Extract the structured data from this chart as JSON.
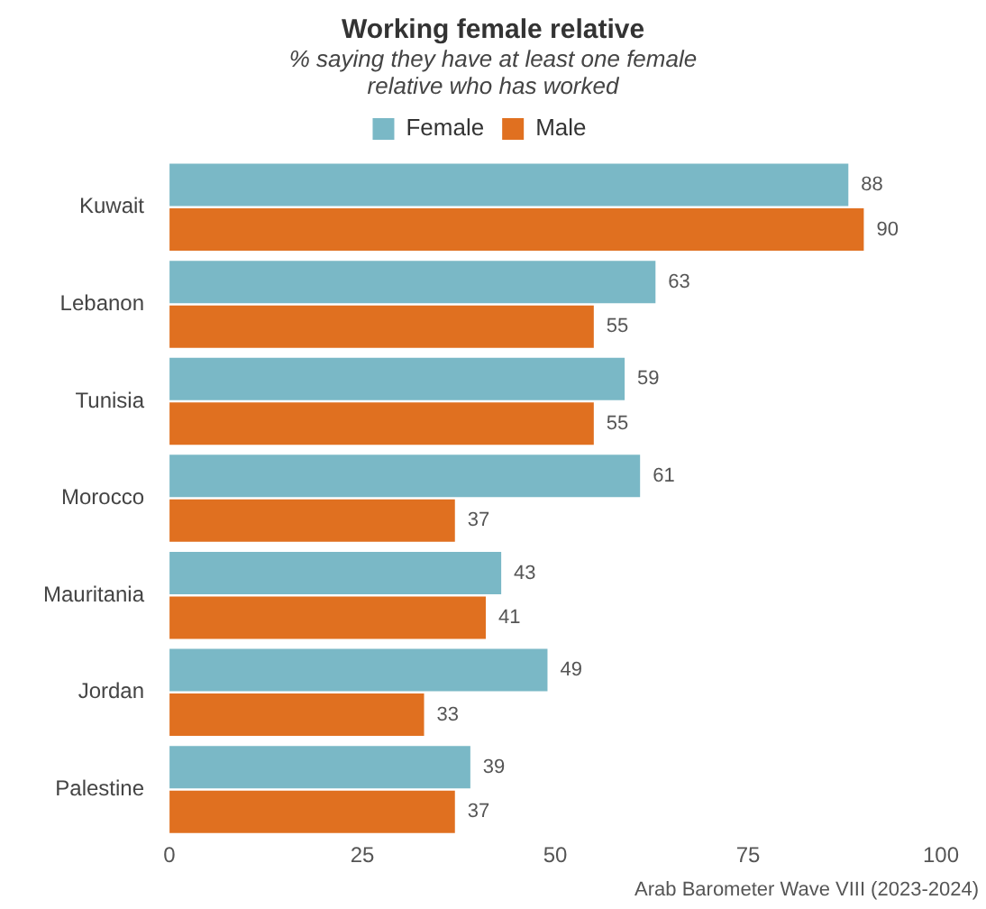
{
  "chart_data": {
    "type": "bar",
    "orientation": "horizontal",
    "title": "Working female relative",
    "subtitle": "% saying they have at least one female relative who has worked",
    "categories": [
      "Kuwait",
      "Lebanon",
      "Tunisia",
      "Morocco",
      "Mauritania",
      "Jordan",
      "Palestine"
    ],
    "series": [
      {
        "name": "Female",
        "color": "#7ab8c6",
        "values": [
          88,
          63,
          59,
          61,
          43,
          49,
          39
        ]
      },
      {
        "name": "Male",
        "color": "#e07020",
        "values": [
          90,
          55,
          55,
          37,
          41,
          33,
          37
        ]
      }
    ],
    "xlim": [
      0,
      100
    ],
    "xticks": [
      0,
      25,
      50,
      75,
      100
    ],
    "grid": false,
    "legend": "top",
    "data_labels": true,
    "annotations": [
      "Arab Barometer Wave VIII (2023-2024)"
    ]
  }
}
